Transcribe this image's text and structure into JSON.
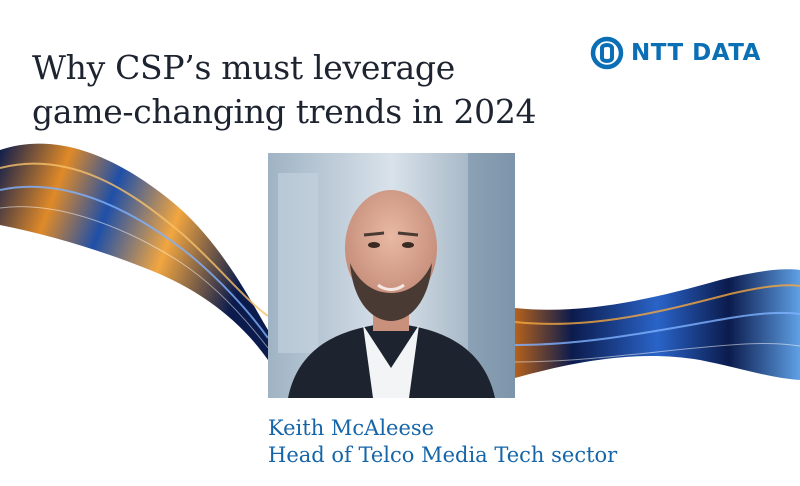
{
  "headline": {
    "line1": "Why CSP’s must leverage",
    "line2": "game-changing trends in 2024"
  },
  "brand": {
    "name": "NTT DATA",
    "logo_icon": "ntt-data-logo-icon",
    "color": "#0a6fb5"
  },
  "speaker": {
    "name": "Keith McAleese",
    "role": "Head of Telco Media Tech sector",
    "text_color": "#1565a8"
  },
  "decoration": {
    "ribbon": "swirling-light-ribbon",
    "colors": [
      "#e08a28",
      "#1f4fa8",
      "#0b1b4d",
      "#5fa0e6"
    ]
  }
}
